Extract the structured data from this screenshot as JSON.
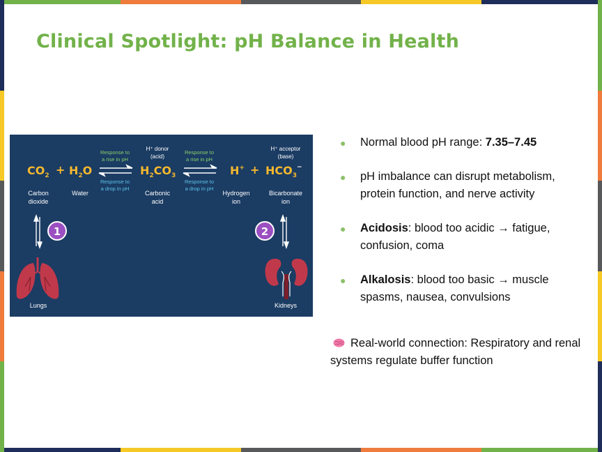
{
  "frame": {
    "top_colors": [
      "#72b24a",
      "#ef7b3c",
      "#58595b",
      "#f6c927",
      "#1f2d5a"
    ],
    "bottom_colors": [
      "#1f2d5a",
      "#f6c927",
      "#58595b",
      "#ef7b3c",
      "#72b24a"
    ],
    "left_colors": [
      "#1f2d5a",
      "#f6c927",
      "#58595b",
      "#ef7b3c",
      "#72b24a"
    ],
    "right_colors": [
      "#72b24a",
      "#ef7b3c",
      "#58595b",
      "#f6c927",
      "#1f2d5a"
    ]
  },
  "slide": {
    "title": "Clinical Spotlight: pH Balance in Health"
  },
  "diagram": {
    "co2_main": "CO",
    "co2_sub": "2",
    "plus": "+",
    "h2o_h": "H",
    "h2o_sub": "2",
    "h2o_o": "O",
    "h2co3_h": "H",
    "h2co3_sub2": "2",
    "h2co3_co": "CO",
    "h2co3_sub3": "3",
    "h_plus_main": "H",
    "h_plus_sup": "+",
    "hco3_main": "HCO",
    "hco3_sub": "3",
    "hco3_sup": "−",
    "rise_line1": "Response to",
    "rise_line2": "a rise in pH",
    "drop_line1": "Response to",
    "drop_line2": "a drop in pH",
    "donor_line1": "H⁺ donor",
    "donor_line2": "(acid)",
    "acceptor_line1": "H⁺ acceptor",
    "acceptor_line2": "(base)",
    "label_carbon_1": "Carbon",
    "label_carbon_2": "dioxide",
    "label_water": "Water",
    "label_carbonic_1": "Carbonic",
    "label_carbonic_2": "acid",
    "label_hydrogen_1": "Hydrogen",
    "label_hydrogen_2": "ion",
    "label_bicarb_1": "Bicarbonate",
    "label_bicarb_2": "ion",
    "badge_1": "1",
    "badge_2": "2",
    "label_lungs": "Lungs",
    "label_kidneys": "Kidneys"
  },
  "bullets": {
    "b1_text": "Normal blood pH range: ",
    "b1_bold": "7.35–7.45",
    "b2_text": "pH imbalance can disrupt metabolism, protein function, and nerve activity",
    "b3_bold": "Acidosis",
    "b3_text": ": blood too acidic → fatigue, confusion, coma",
    "b4_bold": "Alkalosis",
    "b4_text": ": blood too basic → muscle spasms, nausea, convulsions"
  },
  "connection": {
    "icon": "brain-icon",
    "text": "Real-world connection: Respiratory and renal systems regulate buffer function"
  },
  "colors": {
    "title": "#72b24a",
    "diagram_bg": "#1b3c63",
    "formula": "#f5b82e",
    "rise_text": "#8ad16a",
    "drop_text": "#5dc3ea",
    "badge": "#9b4fc1",
    "organ": "#c0394b",
    "bullet_dot": "#8cc06a"
  }
}
